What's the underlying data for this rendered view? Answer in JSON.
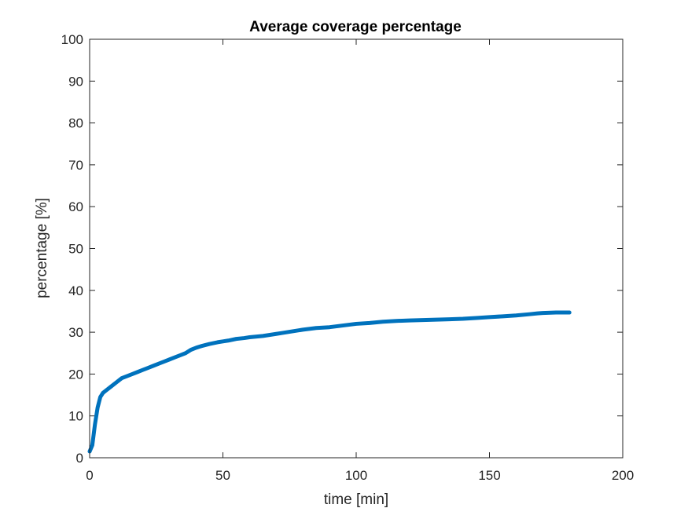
{
  "chart_data": {
    "type": "line",
    "title": "Average coverage percentage",
    "xlabel": "time [min]",
    "ylabel": "percentage [%]",
    "xlim": [
      0,
      200
    ],
    "ylim": [
      0,
      100
    ],
    "xticks": [
      "0",
      "50",
      "100",
      "150",
      "200"
    ],
    "yticks": [
      "0",
      "10",
      "20",
      "30",
      "40",
      "50",
      "60",
      "70",
      "80",
      "90",
      "100"
    ],
    "grid": false,
    "series": [
      {
        "color": "#0072BD",
        "x": [
          0,
          1,
          2,
          3,
          4,
          5,
          6,
          8,
          10,
          12,
          14,
          16,
          18,
          20,
          22,
          24,
          26,
          28,
          30,
          32,
          34,
          36,
          38,
          40,
          42,
          45,
          48,
          50,
          52,
          55,
          58,
          60,
          65,
          70,
          72,
          75,
          80,
          85,
          90,
          95,
          100,
          105,
          110,
          115,
          120,
          125,
          130,
          135,
          140,
          145,
          150,
          155,
          160,
          165,
          168,
          170,
          175,
          180
        ],
        "y": [
          1.5,
          3,
          8,
          12,
          14.5,
          15.5,
          16,
          17,
          18,
          19,
          19.5,
          20,
          20.5,
          21,
          21.5,
          22,
          22.5,
          23,
          23.5,
          24,
          24.5,
          25,
          25.8,
          26.3,
          26.7,
          27.2,
          27.6,
          27.8,
          28,
          28.4,
          28.6,
          28.8,
          29.1,
          29.6,
          29.8,
          30.1,
          30.6,
          31,
          31.2,
          31.6,
          32,
          32.2,
          32.5,
          32.7,
          32.8,
          32.9,
          33,
          33.1,
          33.2,
          33.4,
          33.6,
          33.8,
          34,
          34.3,
          34.5,
          34.6,
          34.7,
          34.7
        ]
      }
    ]
  }
}
